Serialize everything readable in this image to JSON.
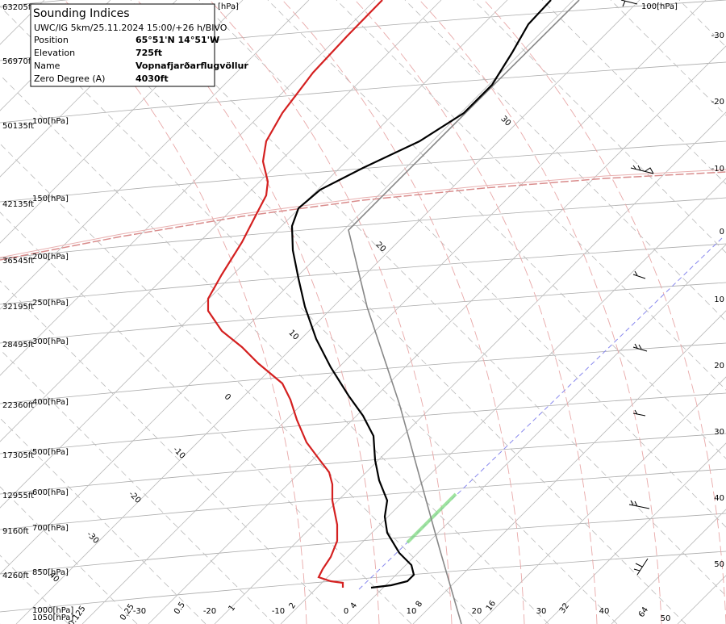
{
  "info": {
    "title": "Sounding Indices",
    "subtitle": "UWC/IG 5km/25.11.2024 15:00/+26 h/BIVO",
    "rows": [
      [
        "Position",
        "65°51'N 14°51'W"
      ],
      [
        "Elevation",
        "725ft"
      ],
      [
        "Name",
        "Vopnafjarðarflugvöllur"
      ],
      [
        "Zero Degree (A)",
        "4030ft"
      ]
    ]
  },
  "altitude_labels": [
    "63205ft",
    "56970ft",
    "50135ft",
    "42135ft",
    "36545ft",
    "32195ft",
    "28495ft",
    "22360ft",
    "17305ft",
    "12955ft",
    "9160ft",
    "4260ft"
  ],
  "pressure_labels": [
    "[hPa]",
    "100[hPa]",
    "100[hPa]",
    "150[hPa]",
    "200[hPa]",
    "250[hPa]",
    "300[hPa]",
    "400[hPa]",
    "500[hPa]",
    "600[hPa]",
    "700[hPa]",
    "850[hPa]",
    "1000[hPa]",
    "1050[hPa]"
  ],
  "right_temperature_labels": [
    "-30",
    "-20",
    "-10",
    "0",
    "10",
    "20",
    "30",
    "40",
    "50"
  ],
  "bottom_temperature_labels": [
    "-30",
    "-20",
    "-10",
    "0",
    "10",
    "20",
    "30",
    "40",
    "50"
  ],
  "mixing_ratio_labels": [
    "0.125",
    "0.25",
    "0.5",
    "1",
    "2",
    "4",
    "8",
    "16",
    "32",
    "64"
  ],
  "adiabat_labels": [
    "30",
    "20",
    "10",
    "0",
    "-10",
    "-20",
    "-30",
    "40"
  ]
}
